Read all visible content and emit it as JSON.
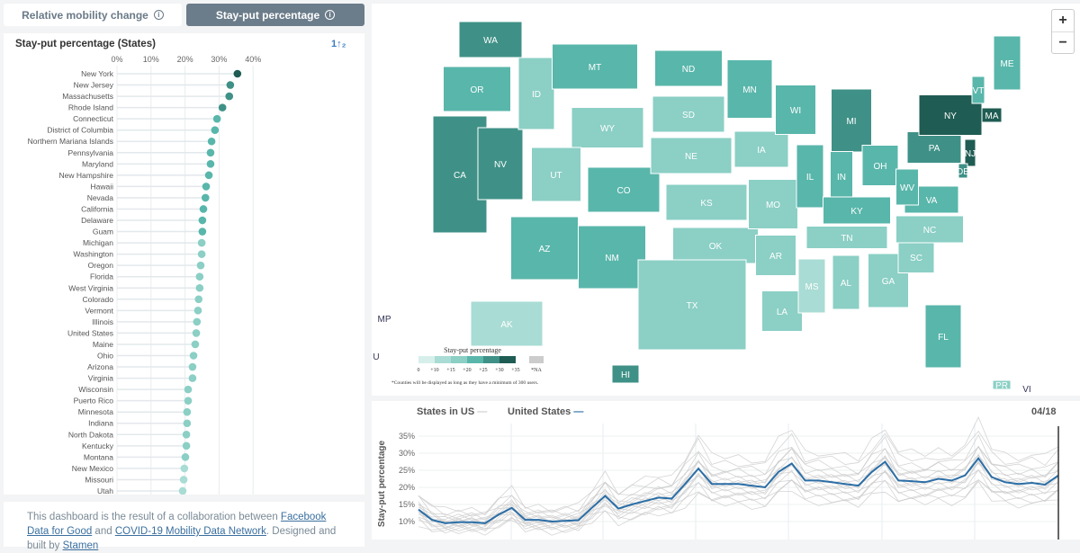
{
  "tabs": [
    {
      "label": "Relative mobility change",
      "active": false
    },
    {
      "label": "Stay-put percentage",
      "active": true
    }
  ],
  "info_icon": "i",
  "left": {
    "title": "Stay-put percentage (States)",
    "sort_icon": "1↑₂",
    "axis_ticks": [
      "0%",
      "10%",
      "20%",
      "30%",
      "40%"
    ],
    "rows": [
      [
        "New York",
        35.4
      ],
      [
        "New Jersey",
        33.3
      ],
      [
        "Massachusetts",
        33
      ],
      [
        "Rhode Island",
        31
      ],
      [
        "Connecticut",
        29.4
      ],
      [
        "District of Columbia",
        28.8
      ],
      [
        "Northern Mariana Islands",
        27.8
      ],
      [
        "Pennsylvania",
        27.5
      ],
      [
        "Maryland",
        27.5
      ],
      [
        "New Hampshire",
        27
      ],
      [
        "Hawaii",
        26.2
      ],
      [
        "Nevada",
        26
      ],
      [
        "California",
        25.4
      ],
      [
        "Delaware",
        25.1
      ],
      [
        "Guam",
        25.1
      ],
      [
        "Michigan",
        24.9
      ],
      [
        "Washington",
        24.9
      ],
      [
        "Oregon",
        24.6
      ],
      [
        "Florida",
        24.3
      ],
      [
        "West Virginia",
        24.3
      ],
      [
        "Colorado",
        24
      ],
      [
        "Vermont",
        23.8
      ],
      [
        "Illinois",
        23.5
      ],
      [
        "United States",
        23.3
      ],
      [
        "Maine",
        23
      ],
      [
        "Ohio",
        22.5
      ],
      [
        "Arizona",
        22.2
      ],
      [
        "Virginia",
        22.2
      ],
      [
        "Wisconsin",
        20.9
      ],
      [
        "Puerto Rico",
        20.9
      ],
      [
        "Minnesota",
        20.6
      ],
      [
        "Indiana",
        20.6
      ],
      [
        "North Dakota",
        20.4
      ],
      [
        "Kentucky",
        20.4
      ],
      [
        "Montana",
        20.1
      ],
      [
        "New Mexico",
        19.8
      ],
      [
        "Missouri",
        19.6
      ],
      [
        "Utah",
        19.3
      ]
    ]
  },
  "footer": {
    "t1": "This dashboard is the result of a collaboration between ",
    "l1": "Facebook Data for Good",
    "t2": " and ",
    "l2": "COVID-19 Mobility Data Network",
    "t3": ". Designed and built by ",
    "l3": "Stamen"
  },
  "map": {
    "zoom_in": "+",
    "zoom_out": "−",
    "legend": {
      "title": "Stay-put percentage",
      "labels": [
        "0",
        "+10",
        "+15",
        "+20",
        "+25",
        "+30",
        "+35"
      ],
      "na": "*NA",
      "colors": [
        "#d6efeb",
        "#a9dcd4",
        "#8bcfc5",
        "#59b6ab",
        "#3f9187",
        "#1f5c53"
      ],
      "note": "*Counties will be displayed as long as they have a minimum of 300 users."
    },
    "states": [
      [
        "WA",
        4
      ],
      [
        "OR",
        3
      ],
      [
        "CA",
        4
      ],
      [
        "NV",
        4
      ],
      [
        "ID",
        2
      ],
      [
        "MT",
        3
      ],
      [
        "WY",
        2
      ],
      [
        "UT",
        2
      ],
      [
        "CO",
        3
      ],
      [
        "AZ",
        3
      ],
      [
        "NM",
        3
      ],
      [
        "ND",
        3
      ],
      [
        "SD",
        2
      ],
      [
        "NE",
        2
      ],
      [
        "KS",
        2
      ],
      [
        "OK",
        2
      ],
      [
        "TX",
        2
      ],
      [
        "MN",
        3
      ],
      [
        "IA",
        2
      ],
      [
        "MO",
        2
      ],
      [
        "AR",
        2
      ],
      [
        "LA",
        2
      ],
      [
        "WI",
        3
      ],
      [
        "IL",
        3
      ],
      [
        "MI",
        4
      ],
      [
        "IN",
        3
      ],
      [
        "OH",
        3
      ],
      [
        "KY",
        3
      ],
      [
        "TN",
        2
      ],
      [
        "MS",
        1
      ],
      [
        "AL",
        2
      ],
      [
        "GA",
        2
      ],
      [
        "FL",
        3
      ],
      [
        "SC",
        2
      ],
      [
        "NC",
        2
      ],
      [
        "VA",
        3
      ],
      [
        "WV",
        3
      ],
      [
        "PA",
        4
      ],
      [
        "NY",
        5
      ],
      [
        "VT",
        3
      ],
      [
        "ME",
        3
      ],
      [
        "MA",
        5
      ],
      [
        "NJ",
        5
      ],
      [
        "DE",
        4
      ],
      [
        "AK",
        1
      ],
      [
        "HI",
        4
      ],
      [
        "MP",
        -1
      ],
      [
        "U",
        -1
      ],
      [
        "PR",
        2
      ],
      [
        "VI",
        -1
      ]
    ]
  },
  "line": {
    "legend_states": "States in US",
    "legend_us": "United States",
    "date": "04/18",
    "ylabel": "Stay-put percentage",
    "yticks": [
      "10%",
      "15%",
      "20%",
      "25%",
      "30%",
      "35%"
    ],
    "us_color": "#2b6ea6",
    "chart_data": {
      "type": "line",
      "ylim": [
        7,
        39
      ],
      "us": [
        13.5,
        10.5,
        9.5,
        9.8,
        9.8,
        9.5,
        12,
        14,
        10.5,
        10.5,
        10,
        10.2,
        10.4,
        14,
        17.5,
        13.8,
        15,
        16,
        17,
        16.7,
        21,
        25.5,
        21,
        21,
        21,
        20.5,
        20,
        24.5,
        27,
        22,
        22,
        21.5,
        21,
        20.5,
        24.5,
        27.5,
        22,
        21.8,
        21.5,
        22.5,
        22,
        23.5,
        28.5,
        23,
        21.5,
        21,
        21.3,
        20.8,
        23.5
      ],
      "states_scale": [
        0.72,
        0.78,
        0.82,
        0.86,
        0.9,
        0.93,
        0.96,
        0.99,
        1.02,
        1.05,
        1.08,
        1.12,
        1.16,
        1.22,
        1.3,
        1.38
      ]
    }
  }
}
